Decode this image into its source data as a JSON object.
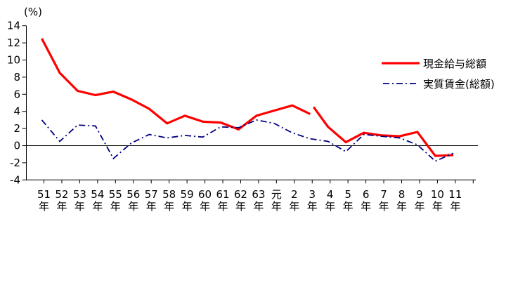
{
  "chart_data": {
    "type": "line",
    "unit_label": "(%)",
    "x_suffix": "年",
    "categories": [
      "51",
      "52",
      "53",
      "54",
      "55",
      "56",
      "57",
      "58",
      "59",
      "60",
      "61",
      "62",
      "63",
      "元",
      "2",
      "3",
      "4",
      "5",
      "6",
      "7",
      "8",
      "9",
      "10",
      "11"
    ],
    "ylim": [
      -4,
      14
    ],
    "yticks": [
      14,
      12,
      10,
      8,
      6,
      4,
      2,
      0,
      -2,
      -4
    ],
    "grid": false,
    "legend_position": "upper-right",
    "axis_color": "#000000",
    "series": [
      {
        "name": "現金給与総額",
        "color": "#ff0000",
        "style": "solid",
        "segments": [
          {
            "start_category": "51",
            "values": [
              12.5,
              8.5,
              6.4,
              5.9,
              6.3,
              5.4,
              4.3,
              2.6,
              3.5,
              2.8,
              2.7,
              1.9,
              3.5,
              4.1,
              4.7,
              3.7
            ]
          },
          {
            "start_category": "3",
            "values": [
              4.5,
              2.2,
              0.4,
              1.5,
              1.2,
              1.1,
              1.6,
              -1.2,
              -1.1
            ]
          }
        ]
      },
      {
        "name": "実質賃金(総額)",
        "color": "#000080",
        "style": "dash-dot",
        "segments": [
          {
            "start_category": "51",
            "values": [
              3.0,
              0.5,
              2.4,
              2.3,
              -1.5,
              0.3,
              1.3,
              0.9,
              1.2,
              1.0,
              2.2,
              2.1,
              3.0,
              2.6,
              1.5,
              0.8,
              0.5,
              -0.7,
              1.3,
              1.1,
              0.9,
              0.1,
              -1.8,
              -0.9
            ]
          }
        ]
      }
    ]
  }
}
